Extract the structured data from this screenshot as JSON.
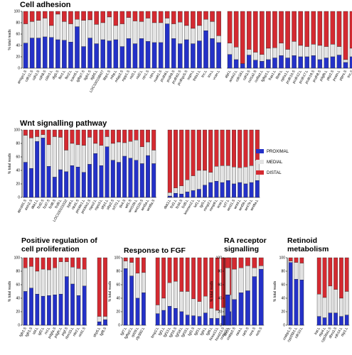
{
  "legend": [
    {
      "name": "PROXIMAL",
      "color": "#2431c8"
    },
    {
      "name": "MEDIAL",
      "color": "#e3e3e3"
    },
    {
      "name": "DISTAL",
      "color": "#d42a31"
    }
  ],
  "ylabel": "% total reads",
  "chart_data": [
    {
      "id": "cell-adhesion",
      "type": "bar",
      "stacked": true,
      "title": "Cell adhesion",
      "ylabel": "% total reads",
      "ylim": [
        0,
        100
      ],
      "yticks": [
        0,
        20,
        40,
        60,
        80,
        100
      ],
      "groups": [
        {
          "categories": [
            "amigo1.S",
            "cdh11.S",
            "cdh2.S",
            "cdh8.S",
            "cldn1.L",
            "dlg5.S",
            "fbn1.L",
            "fbn2.L",
            "icam5.L",
            "igfbp7.S",
            "itgb1.S",
            "itgb5.L",
            "LOC100158427",
            "ltbp1.S",
            "mbp.L",
            "mfap2.S",
            "mpp1.S",
            "nid1.L",
            "nid2.L",
            "ntn1.S",
            "ntm.L",
            "nuak1.S",
            "pcdh8.L",
            "pcdh9.S",
            "pcdhb2.S",
            "pcdhgc5.S",
            "sspn.L",
            "thbs1.L",
            "tnc.L",
            "tnn.L",
            "vcan.L"
          ],
          "proximal": [
            44,
            53,
            53,
            55,
            54,
            50,
            49,
            46,
            73,
            38,
            53,
            43,
            50,
            48,
            50,
            38,
            52,
            43,
            52,
            47,
            45,
            45,
            78,
            52,
            43,
            50,
            43,
            48,
            66,
            52,
            45
          ],
          "medial": [
            34,
            29,
            31,
            33,
            21,
            45,
            33,
            32,
            13,
            46,
            32,
            34,
            30,
            42,
            25,
            40,
            37,
            40,
            30,
            41,
            35,
            35,
            10,
            26,
            38,
            25,
            27,
            27,
            20,
            30,
            12
          ]
        },
        {
          "categories": [
            "alpl.L",
            "amhr2.L",
            "cdh18.L",
            "cdh3.S",
            "col1a2.S",
            "col9a1.L",
            "fgfbp1.L",
            "fras1.L",
            "ltb4r.L",
            "nphs1.L",
            "pcdh10.S",
            "pcdh12.L",
            "pcdh17.L",
            "pcdh19.S",
            "pcdh8.S",
            "pdgfb.L",
            "pkp2.S",
            "postn.L",
            "ptprs.S",
            "tnc.S",
            "vtn.L"
          ],
          "proximal": [
            24,
            15,
            8,
            23,
            14,
            12,
            15,
            18,
            22,
            18,
            22,
            20,
            20,
            22,
            15,
            18,
            20,
            23,
            10,
            20,
            25
          ],
          "medial": [
            20,
            22,
            0,
            10,
            14,
            12,
            20,
            18,
            22,
            15,
            25,
            20,
            18,
            20,
            25,
            20,
            22,
            15,
            5,
            15,
            15
          ]
        }
      ]
    },
    {
      "id": "wnt",
      "type": "bar",
      "stacked": true,
      "title": "Wnt signalling pathway",
      "ylabel": "% total reads",
      "ylim": [
        0,
        100
      ],
      "yticks": [
        0,
        20,
        40,
        60,
        80,
        100
      ],
      "groups": [
        {
          "categories": [
            "apcdd1.S",
            "axin2.S",
            "dkk1.L",
            "fzd2.S",
            "fzd7.S",
            "fzd8.S",
            "fzd9.L",
            "LOC100101032",
            "lrp6.L",
            "nkd1.S",
            "prickle1.L",
            "prickle2.S",
            "rspo2.L",
            "rspo3.L",
            "sfrp1.L",
            "sfrp2.S",
            "tcf7l1.L",
            "tle4.S",
            "wif1.S",
            "wnt10b.L",
            "wnt11b.S",
            "wnt5a.L",
            "wnt8a.S"
          ],
          "proximal": [
            52,
            43,
            83,
            88,
            46,
            30,
            41,
            38,
            47,
            45,
            37,
            49,
            65,
            47,
            75,
            55,
            52,
            61,
            58,
            55,
            50,
            62,
            50
          ],
          "medial": [
            40,
            45,
            7,
            5,
            32,
            60,
            48,
            32,
            33,
            33,
            40,
            40,
            15,
            30,
            15,
            25,
            30,
            20,
            25,
            30,
            25,
            20,
            20
          ]
        },
        {
          "categories": [
            "dkk3.L",
            "fzd1.L",
            "fzd4.S",
            "fzd5.L",
            "kremen2.L",
            "lef1.L",
            "lgr5.L",
            "mmp2.L",
            "mmp9.L",
            "sost.L",
            "tcf7.L",
            "wnt11.S",
            "wnt4.L",
            "wnt5b.L",
            "wnt7b.L",
            "wnt9a.L"
          ],
          "proximal": [
            2,
            6,
            5,
            8,
            10,
            12,
            18,
            22,
            24,
            22,
            25,
            20,
            22,
            20,
            22,
            25
          ],
          "medial": [
            5,
            8,
            12,
            18,
            22,
            28,
            22,
            15,
            22,
            25,
            22,
            25,
            22,
            25,
            25,
            30
          ]
        }
      ]
    },
    {
      "id": "proliferation",
      "type": "bar",
      "stacked": true,
      "title": "Positive regulation of cell proliferation",
      "ylabel": "% total reads",
      "ylim": [
        0,
        100
      ],
      "yticks": [
        0,
        20,
        40,
        60,
        80,
        100
      ],
      "groups": [
        {
          "categories": [
            "fgfr2.S",
            "fgfr3.S",
            "id4.L",
            "igf2.L",
            "ncl.L",
            "pdgfa.S",
            "pdgfc.L",
            "pigf.S",
            "rbm15.L",
            "nfe2.L",
            "nrd1.S"
          ],
          "proximal": [
            50,
            55,
            46,
            43,
            44,
            45,
            46,
            72,
            61,
            44,
            58
          ],
          "medial": [
            35,
            32,
            34,
            40,
            38,
            40,
            48,
            22,
            25,
            40,
            25
          ]
        },
        {
          "categories": [
            "sfrp5.L",
            "fgf8.S"
          ],
          "proximal": [
            5,
            8
          ],
          "medial": [
            8,
            5
          ]
        }
      ]
    },
    {
      "id": "fgf",
      "type": "bar",
      "stacked": true,
      "title": "Response to FGF",
      "ylabel": "% total reads",
      "ylim": [
        0,
        100
      ],
      "yticks": [
        0,
        20,
        40,
        60,
        80,
        100
      ],
      "groups": [
        {
          "categories": [
            "fgf7.L",
            "fgfbp2.L",
            "rpl29.L",
            "zfp36l2.L"
          ],
          "proximal": [
            84,
            73,
            40,
            48
          ],
          "medial": [
            11,
            20,
            37,
            30
          ]
        },
        {
          "categories": [
            "bmp2.L",
            "fgf1.L",
            "fgf13.L",
            "fgf16.S",
            "fgf18.L",
            "fgf19.L",
            "fgf2.S",
            "fgf3.L",
            "fgf4.L",
            "fgf6.L",
            "hoxa13.L",
            "hoxd13.S",
            "tbx5.L"
          ],
          "proximal": [
            17,
            22,
            28,
            25,
            20,
            15,
            14,
            13,
            18,
            10,
            10,
            14,
            20
          ],
          "medial": [
            13,
            18,
            35,
            40,
            30,
            35,
            25,
            22,
            25,
            15,
            12,
            12,
            25
          ]
        }
      ]
    },
    {
      "id": "ra-receptor",
      "type": "bar",
      "stacked": true,
      "title": "RA receptor signalling",
      "ylabel": "% total reads",
      "ylim": [
        0,
        100
      ],
      "yticks": [
        0,
        20,
        40,
        60,
        80,
        100
      ],
      "groups": [
        {
          "categories": [
            "crabp2.L",
            "crabp2.S",
            "rara.L",
            "rarb.S",
            "rxra.S",
            "rxrb.S"
          ],
          "proximal": [
            45,
            38,
            48,
            51,
            72,
            83
          ],
          "medial": [
            40,
            45,
            37,
            37,
            13,
            5
          ]
        }
      ]
    },
    {
      "id": "retinoid",
      "type": "bar",
      "stacked": true,
      "title": "Retinoid metabolism",
      "ylabel": "% total reads",
      "ylim": [
        0,
        100
      ],
      "yticks": [
        0,
        20,
        40,
        60,
        80,
        100
      ],
      "groups": [
        {
          "categories": [
            "crabp1.S",
            "cyp26b1.L",
            "rdh10.L"
          ],
          "proximal": [
            93,
            68,
            67
          ],
          "medial": [
            2,
            25,
            25
          ]
        },
        {
          "categories": [
            "lrat.L",
            "rbp4.L",
            "cyp26a1.S",
            "dhrs3.S",
            "rdh14.L",
            "rbp1.L"
          ],
          "proximal": [
            13,
            11,
            18,
            18,
            13,
            15
          ],
          "medial": [
            33,
            30,
            40,
            35,
            27,
            35
          ]
        }
      ]
    }
  ]
}
